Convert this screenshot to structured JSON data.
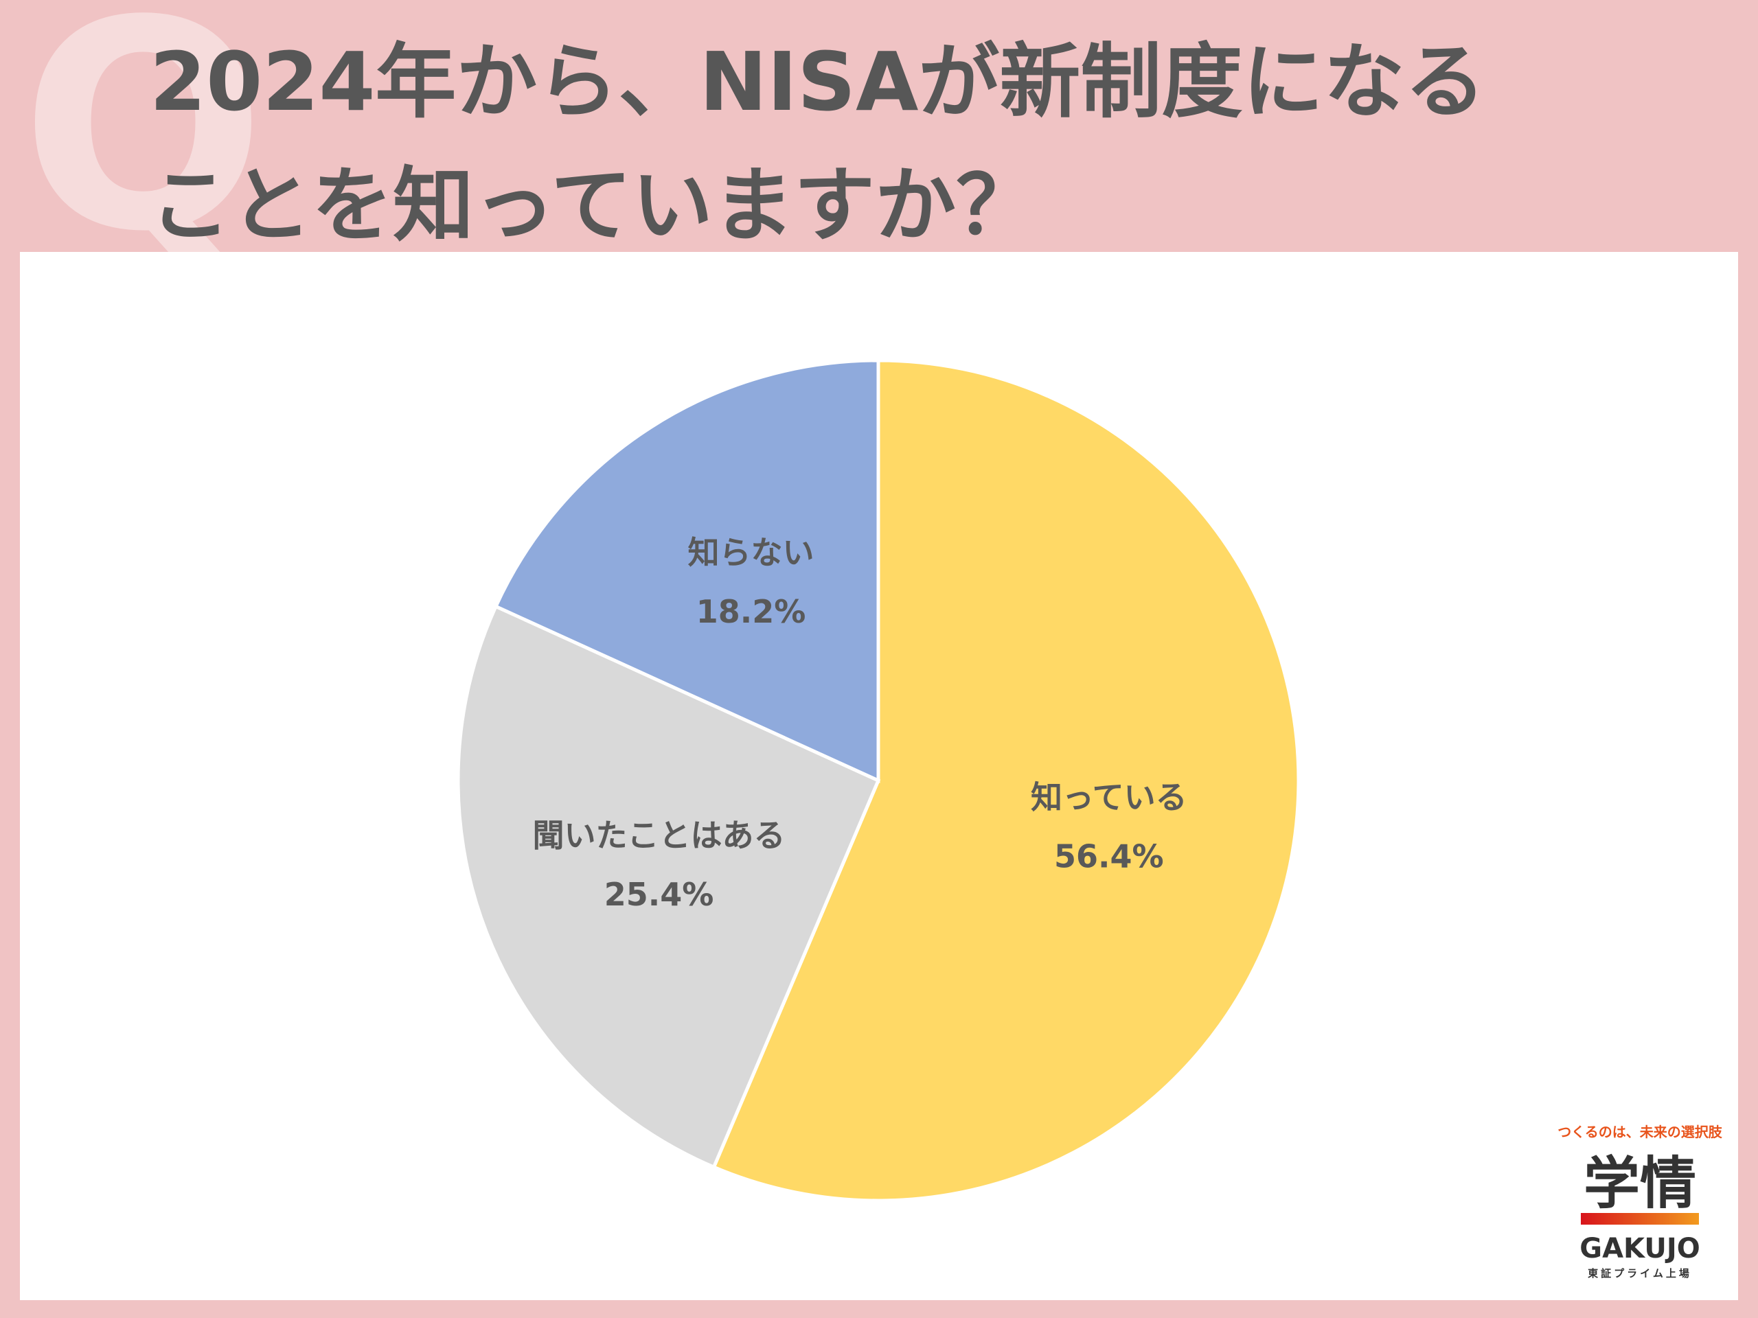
{
  "chart_data": {
    "type": "pie",
    "watermark": "Q",
    "title": [
      "2024年から、NISAが新制度になる",
      "ことを知っていますか？"
    ],
    "categories": [
      "知っている",
      "聞いたことはある",
      "知らない"
    ],
    "values": [
      56.4,
      25.4,
      18.2
    ],
    "value_labels": [
      "56.4%",
      "25.4%",
      "18.2%"
    ],
    "colors": [
      "#ffd966",
      "#d9d9d9",
      "#8faadc"
    ]
  },
  "logo": {
    "tagline": "つくるのは、未来の選択肢",
    "name": "学情",
    "roman": "GAKUJO",
    "note": "東証プライム上場"
  }
}
